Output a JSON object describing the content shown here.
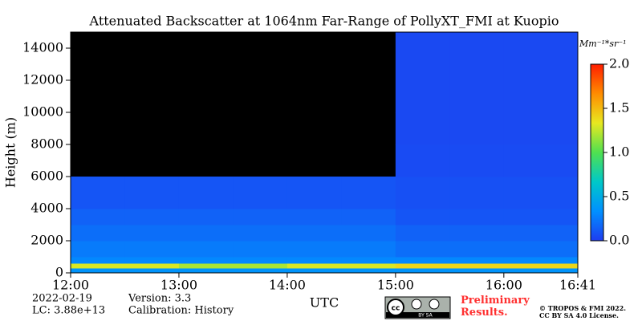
{
  "chart_data": {
    "type": "heatmap",
    "title": "Attenuated Backscatter at 1064nm Far-Range of PollyXT_FMI at Kuopio",
    "x_label": "UTC",
    "y_label": "Height (m)",
    "colorbar_label": "Mm⁻¹*sr⁻¹",
    "x_edges": [
      12,
      12.5,
      13,
      13.5,
      14,
      14.5,
      15,
      15.5,
      16,
      16.683
    ],
    "y_edges": [
      0,
      300,
      600,
      1000,
      2000,
      3000,
      4000,
      6000,
      8000,
      10000,
      15000
    ],
    "z": [
      [
        0.35,
        0.35,
        0.35,
        0.35,
        0.35,
        0.35,
        0.35,
        0.35,
        0.35
      ],
      [
        1.3,
        1.3,
        1.2,
        1.2,
        1.3,
        1.3,
        1.4,
        1.4,
        1.4
      ],
      [
        0.3,
        0.3,
        0.3,
        0.3,
        0.3,
        0.3,
        0.3,
        0.3,
        0.3
      ],
      [
        0.25,
        0.25,
        0.25,
        0.25,
        0.25,
        0.25,
        0.2,
        0.2,
        0.2
      ],
      [
        0.2,
        0.2,
        0.2,
        0.2,
        0.2,
        0.2,
        0.15,
        0.15,
        0.15
      ],
      [
        0.15,
        0.15,
        0.15,
        0.15,
        0.15,
        0.15,
        0.1,
        0.1,
        0.1
      ],
      [
        0.1,
        0.1,
        0.1,
        0.1,
        0.1,
        0.1,
        0.08,
        0.08,
        0.08
      ],
      [
        null,
        null,
        null,
        null,
        null,
        null,
        0.06,
        0.06,
        0.06
      ],
      [
        null,
        null,
        null,
        null,
        null,
        null,
        0.05,
        0.05,
        0.05
      ],
      [
        null,
        null,
        null,
        null,
        null,
        null,
        0.05,
        0.05,
        0.05
      ]
    ],
    "xlim": [
      12,
      16.683
    ],
    "xticks": [
      {
        "value": 12,
        "label": "12:00"
      },
      {
        "value": 13,
        "label": "13:00"
      },
      {
        "value": 14,
        "label": "14:00"
      },
      {
        "value": 15,
        "label": "15:00"
      },
      {
        "value": 16,
        "label": "16:00"
      },
      {
        "value": 16.683,
        "label": "16:41"
      }
    ],
    "ylim": [
      0,
      15000
    ],
    "yticks": [
      0,
      2000,
      4000,
      6000,
      8000,
      10000,
      12000,
      14000
    ],
    "zlim": [
      0,
      2
    ],
    "zticks": [
      {
        "value": 0,
        "label": "0.0"
      },
      0.5,
      {
        "value": 1,
        "label": "1.0"
      },
      1.5,
      {
        "value": 2,
        "label": "2.0"
      }
    ],
    "colormap": [
      "#1e3cf0",
      "#0090ff",
      "#00c8c8",
      "#50e050",
      "#e8e820",
      "#ff8c00",
      "#ff1e00"
    ],
    "missing_color": "#000000",
    "annotations": [
      "2022-02-19",
      "Version: 3.3",
      "LC: 3.88e+13",
      "Calibration: History",
      "Preliminary Results.",
      "© TROPOS & FMI 2022.",
      "CC BY SA 4.0 License.",
      "BY SA"
    ]
  }
}
